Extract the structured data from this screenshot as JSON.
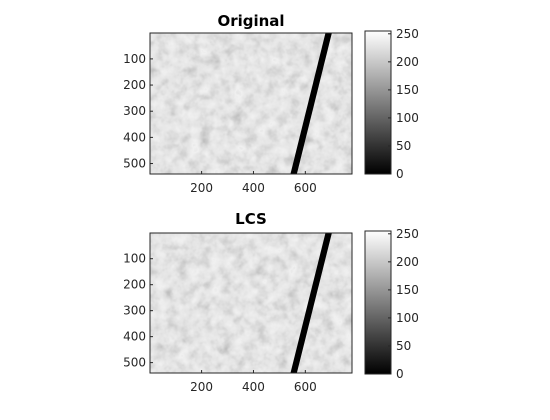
{
  "chart_data": [
    {
      "type": "heatmap",
      "title": "Original",
      "colormap": "gray",
      "image_size": {
        "width": 780,
        "height": 540
      },
      "xlim": [
        1,
        780
      ],
      "ylim": [
        1,
        540
      ],
      "x_ticks": [
        200,
        400,
        600
      ],
      "y_ticks": [
        100,
        200,
        300,
        400,
        500
      ],
      "colorbar": {
        "ticks": [
          0,
          50,
          100,
          150,
          200,
          250
        ],
        "range": [
          0,
          255
        ]
      },
      "dark_band": {
        "top_x": 690,
        "bottom_x": 555
      }
    },
    {
      "type": "heatmap",
      "title": "LCS",
      "colormap": "gray",
      "image_size": {
        "width": 780,
        "height": 540
      },
      "xlim": [
        1,
        780
      ],
      "ylim": [
        1,
        540
      ],
      "x_ticks": [
        200,
        400,
        600
      ],
      "y_ticks": [
        100,
        200,
        300,
        400,
        500
      ],
      "colorbar": {
        "ticks": [
          0,
          50,
          100,
          150,
          200,
          250
        ],
        "range": [
          0,
          255
        ]
      },
      "dark_band": {
        "top_x": 690,
        "bottom_x": 555
      }
    }
  ]
}
